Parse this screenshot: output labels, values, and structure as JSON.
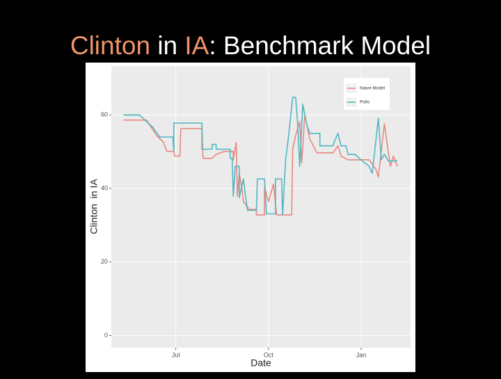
{
  "slide_title": [
    {
      "text": "Clinton",
      "color": "#f0956a"
    },
    {
      "text": " in ",
      "color": "#ffffff"
    },
    {
      "text": "IA",
      "color": "#f0956a"
    },
    {
      "text": ": Benchmark Model",
      "color": "#ffffff"
    }
  ],
  "chart_data": {
    "type": "line",
    "x_label": "Date",
    "y_label": "Clinton  in IA",
    "xlim": [
      0,
      297
    ],
    "ylim": [
      -3.3,
      73.3
    ],
    "xticks": [
      {
        "value": 64,
        "label": "Jul"
      },
      {
        "value": 156,
        "label": "Oct"
      },
      {
        "value": 248,
        "label": "Jan"
      }
    ],
    "yticks": [
      0,
      20,
      40,
      60
    ],
    "grid": true,
    "legend": "top-right",
    "series": [
      {
        "name": "Naive Model",
        "color": "#e8877f",
        "x": [
          12,
          35,
          38,
          45,
          52,
          55,
          62,
          63,
          68,
          69,
          90,
          91,
          100,
          104,
          112,
          121,
          121,
          124,
          125,
          127,
          130,
          131,
          137,
          144,
          144,
          152,
          152,
          156,
          161,
          164,
          179,
          180,
          183,
          187,
          189,
          192,
          197,
          204,
          220,
          225,
          228,
          235,
          256,
          263,
          265,
          271,
          277,
          280,
          284
        ],
        "values": [
          58.6,
          58.6,
          57.3,
          54.4,
          52.5,
          50.1,
          50.1,
          48.8,
          48.8,
          56.3,
          56.3,
          48.2,
          48.2,
          49.3,
          50.1,
          50.1,
          47.8,
          52.5,
          37.9,
          44.1,
          39.4,
          36.5,
          34.3,
          34.3,
          32.8,
          32.8,
          40.3,
          36.5,
          41.2,
          32.8,
          32.8,
          50.7,
          54.4,
          58.2,
          46.9,
          60,
          53.5,
          49.7,
          49.7,
          51.6,
          48.8,
          47.8,
          47.8,
          45,
          43.1,
          57.6,
          46,
          48.8,
          46
        ]
      },
      {
        "name": "Polls",
        "color": "#4fb6c2",
        "x": [
          12,
          28,
          35,
          41,
          48,
          61,
          62,
          62,
          90,
          90,
          100,
          100,
          104,
          104,
          118,
          118,
          120,
          121,
          123,
          127,
          127,
          131,
          135,
          144,
          145,
          152,
          154,
          163,
          163,
          169,
          170,
          173,
          176,
          180,
          183,
          185,
          187,
          190,
          194,
          197,
          207,
          207,
          220,
          221,
          225,
          228,
          233,
          235,
          242,
          249,
          256,
          259,
          265,
          268,
          271,
          275,
          284
        ],
        "values": [
          60,
          60,
          58.2,
          56.7,
          54,
          54,
          50.1,
          57.8,
          57.8,
          50.7,
          50.7,
          52,
          52,
          50.7,
          50.7,
          48.2,
          48.2,
          37.9,
          46,
          46,
          37.5,
          42.6,
          34.1,
          34.1,
          42.6,
          42.6,
          33.1,
          33.1,
          42.6,
          42.6,
          32.8,
          47.8,
          54.4,
          64.8,
          64.8,
          57.6,
          46,
          62.9,
          57.3,
          55,
          55,
          51.6,
          51.6,
          52.5,
          55,
          51.6,
          51.6,
          49.3,
          49.3,
          47.5,
          46,
          44.1,
          59.1,
          47.8,
          49.3,
          47.5,
          47.5
        ]
      }
    ]
  }
}
